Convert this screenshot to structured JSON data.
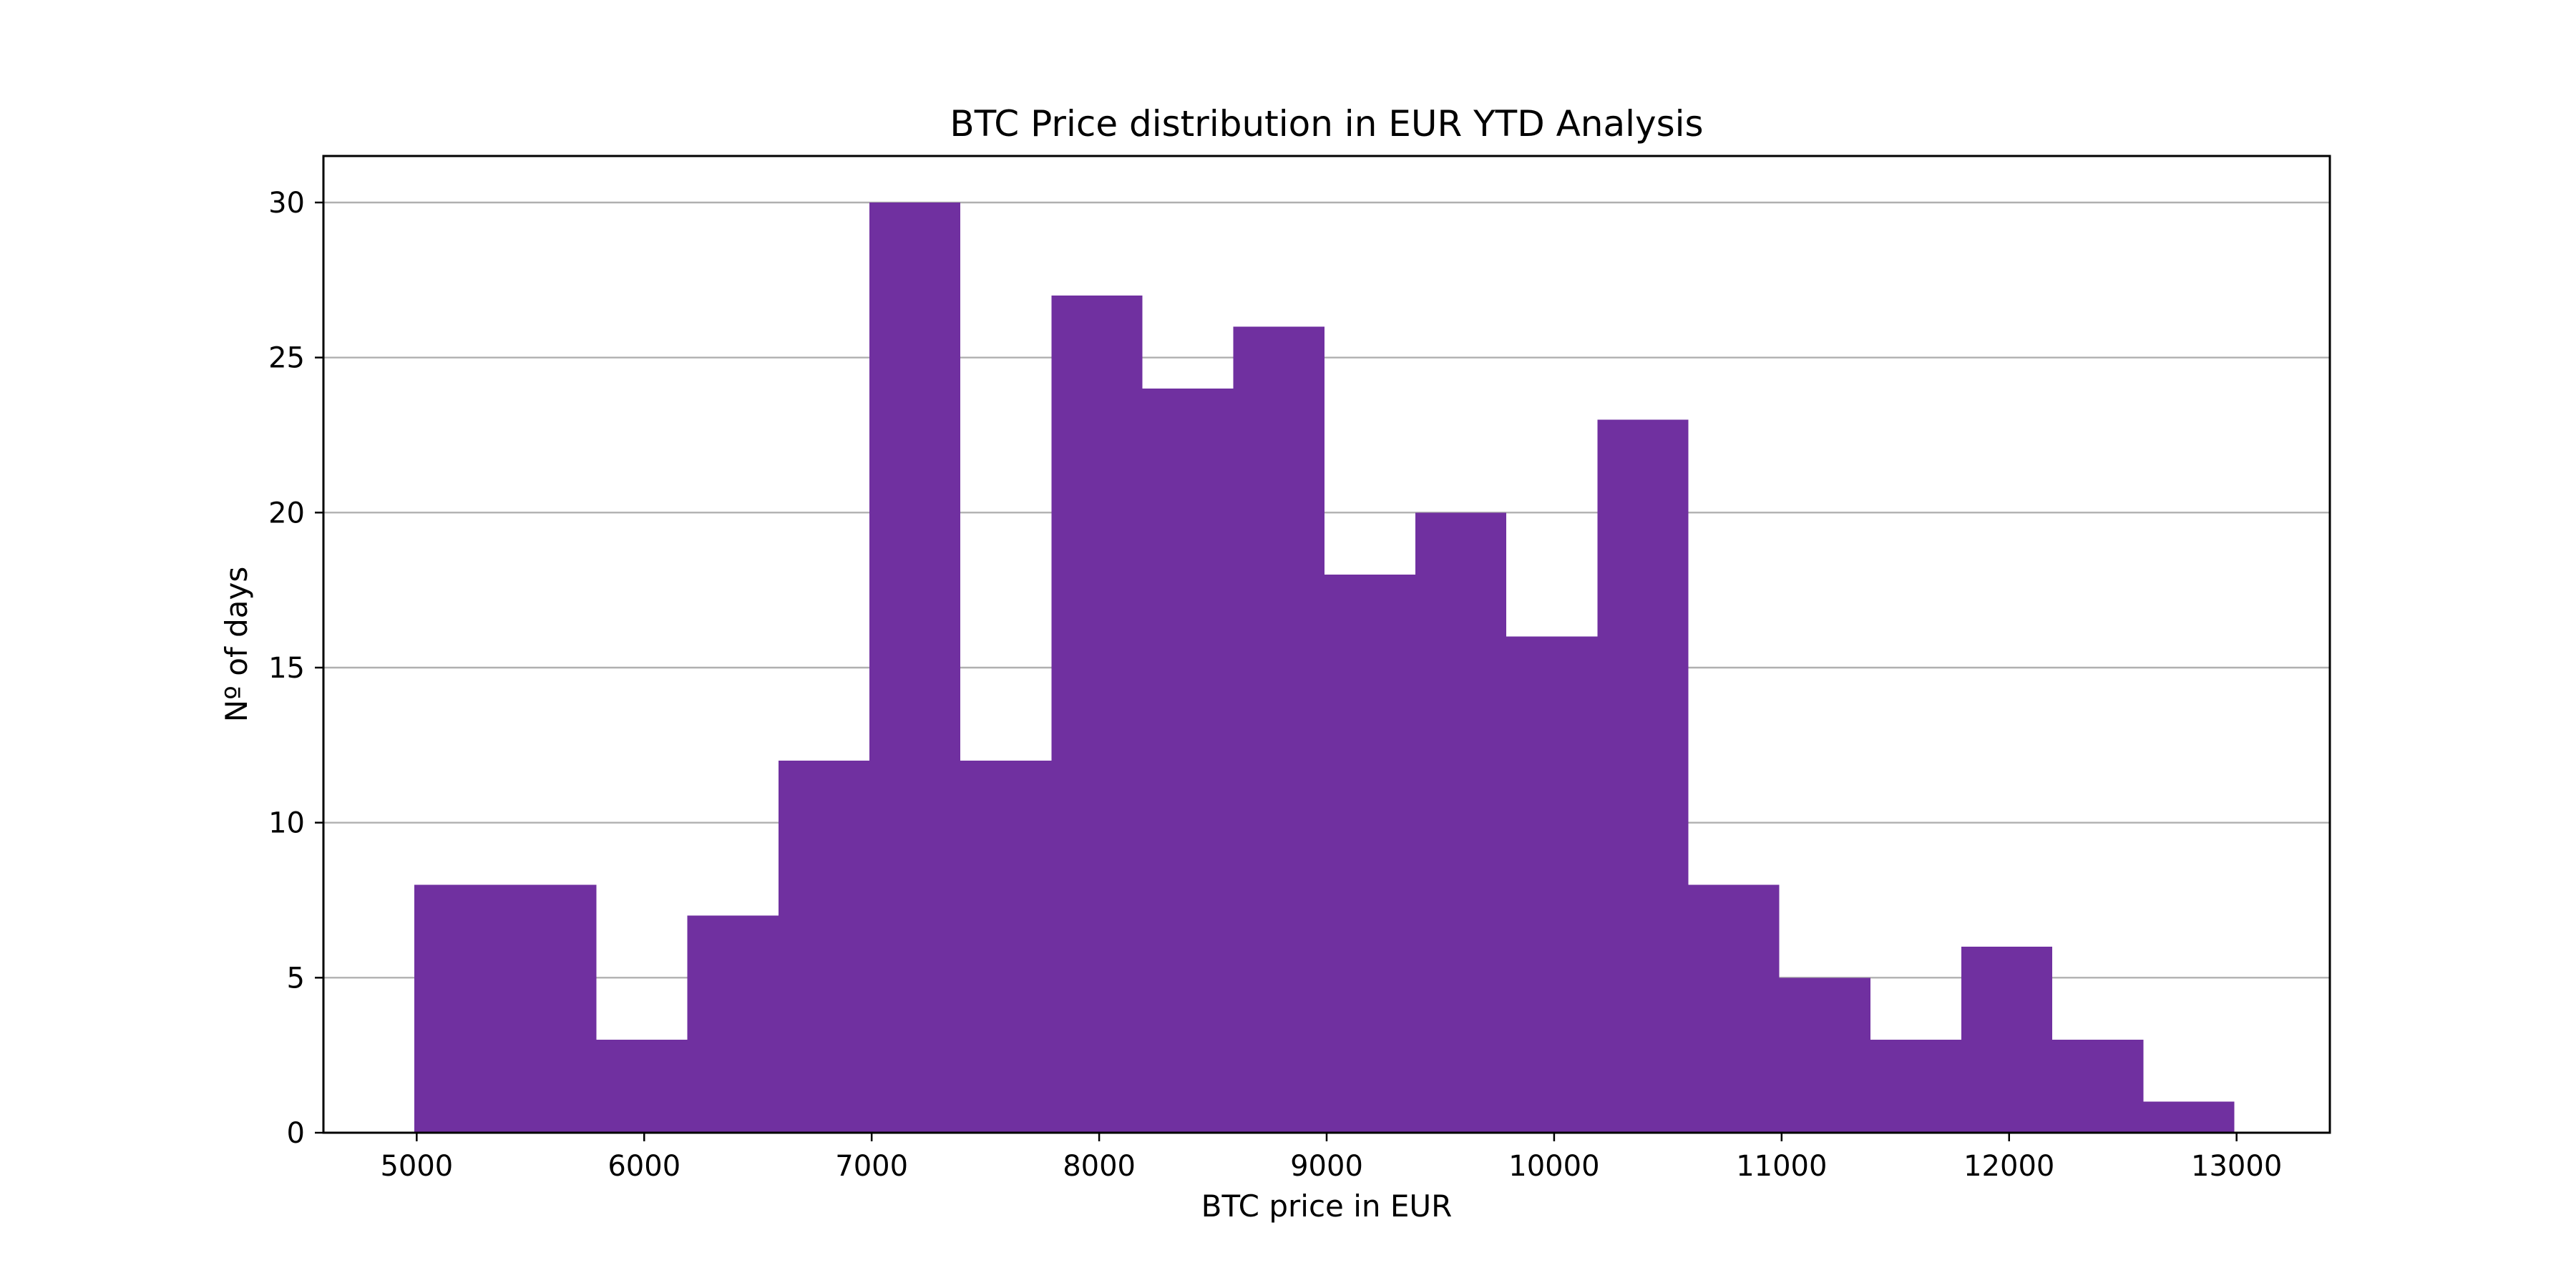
{
  "chart_data": {
    "type": "bar",
    "title": "BTC Price distribution in EUR YTD Analysis",
    "xlabel": "BTC price in EUR",
    "ylabel": "Nº of days",
    "xlim": [
      4590,
      13410
    ],
    "ylim": [
      0,
      31.5
    ],
    "x_ticks": [
      5000,
      6000,
      7000,
      8000,
      9000,
      10000,
      11000,
      12000,
      13000
    ],
    "y_ticks": [
      0,
      5,
      10,
      15,
      20,
      25,
      30
    ],
    "grid": "y",
    "bar_color": "#7030a0",
    "bins": [
      {
        "x0": 4990,
        "x1": 5390,
        "count": 8
      },
      {
        "x0": 5390,
        "x1": 5790,
        "count": 8
      },
      {
        "x0": 5790,
        "x1": 6190,
        "count": 3
      },
      {
        "x0": 6190,
        "x1": 6590,
        "count": 7
      },
      {
        "x0": 6590,
        "x1": 6990,
        "count": 12
      },
      {
        "x0": 6990,
        "x1": 7390,
        "count": 30
      },
      {
        "x0": 7390,
        "x1": 7790,
        "count": 12
      },
      {
        "x0": 7790,
        "x1": 8190,
        "count": 27
      },
      {
        "x0": 8190,
        "x1": 8590,
        "count": 24
      },
      {
        "x0": 8590,
        "x1": 8990,
        "count": 26
      },
      {
        "x0": 8990,
        "x1": 9390,
        "count": 18
      },
      {
        "x0": 9390,
        "x1": 9790,
        "count": 20
      },
      {
        "x0": 9790,
        "x1": 10190,
        "count": 16
      },
      {
        "x0": 10190,
        "x1": 10590,
        "count": 23
      },
      {
        "x0": 10590,
        "x1": 10990,
        "count": 8
      },
      {
        "x0": 10990,
        "x1": 11390,
        "count": 5
      },
      {
        "x0": 11390,
        "x1": 11790,
        "count": 3
      },
      {
        "x0": 11790,
        "x1": 12190,
        "count": 6
      },
      {
        "x0": 12190,
        "x1": 12590,
        "count": 3
      },
      {
        "x0": 12590,
        "x1": 12990,
        "count": 1
      }
    ]
  }
}
